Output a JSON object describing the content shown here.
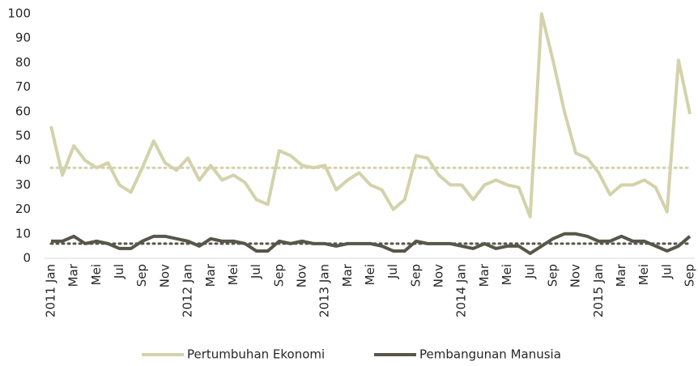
{
  "chart_data": {
    "type": "line",
    "categories": [
      "2011 Jan",
      null,
      "Mar",
      null,
      "Mei",
      null,
      "Jul",
      null,
      "Sep",
      null,
      "Nov",
      null,
      "2012 Jan",
      null,
      "Mar",
      null,
      "Mei",
      null,
      "Jul",
      null,
      "Sep",
      null,
      "Nov",
      null,
      "2013 Jan",
      null,
      "Mar",
      null,
      "Mei",
      null,
      "Jul",
      null,
      "Sep",
      null,
      "Nov",
      null,
      "2014 Jan",
      null,
      "Mar",
      null,
      "Mei",
      null,
      "Jul",
      null,
      "Sep",
      null,
      "Nov",
      null,
      "2015 Jan",
      null,
      "Mar",
      null,
      "Mei",
      null,
      "Jul",
      null,
      "Sep"
    ],
    "series": [
      {
        "name": "Pertumbuhan Ekonomi",
        "color": "#d4d2ab",
        "average": 37,
        "values": [
          54,
          34,
          46,
          40,
          37,
          39,
          30,
          27,
          37,
          48,
          39,
          36,
          41,
          32,
          38,
          32,
          34,
          31,
          24,
          22,
          44,
          42,
          38,
          37,
          38,
          28,
          32,
          35,
          30,
          28,
          20,
          24,
          42,
          41,
          34,
          30,
          30,
          24,
          30,
          32,
          30,
          29,
          17,
          100,
          81,
          60,
          43,
          41,
          35,
          26,
          30,
          30,
          32,
          29,
          19,
          81,
          59
        ]
      },
      {
        "name": "Pembangunan Manusia",
        "color": "#58564a",
        "average": 6,
        "values": [
          7,
          7,
          9,
          6,
          7,
          6,
          4,
          4,
          7,
          9,
          9,
          8,
          7,
          5,
          8,
          7,
          7,
          6,
          3,
          3,
          7,
          6,
          7,
          6,
          6,
          5,
          6,
          6,
          6,
          5,
          3,
          3,
          7,
          6,
          6,
          6,
          5,
          4,
          6,
          4,
          5,
          5,
          2,
          5,
          8,
          10,
          10,
          9,
          7,
          7,
          9,
          7,
          7,
          5,
          3,
          5,
          9
        ]
      }
    ],
    "ylim": [
      0,
      100
    ],
    "yticks": [
      0,
      10,
      20,
      30,
      40,
      50,
      60,
      70,
      80,
      90,
      100
    ],
    "grid": false,
    "legend": "bottom"
  }
}
